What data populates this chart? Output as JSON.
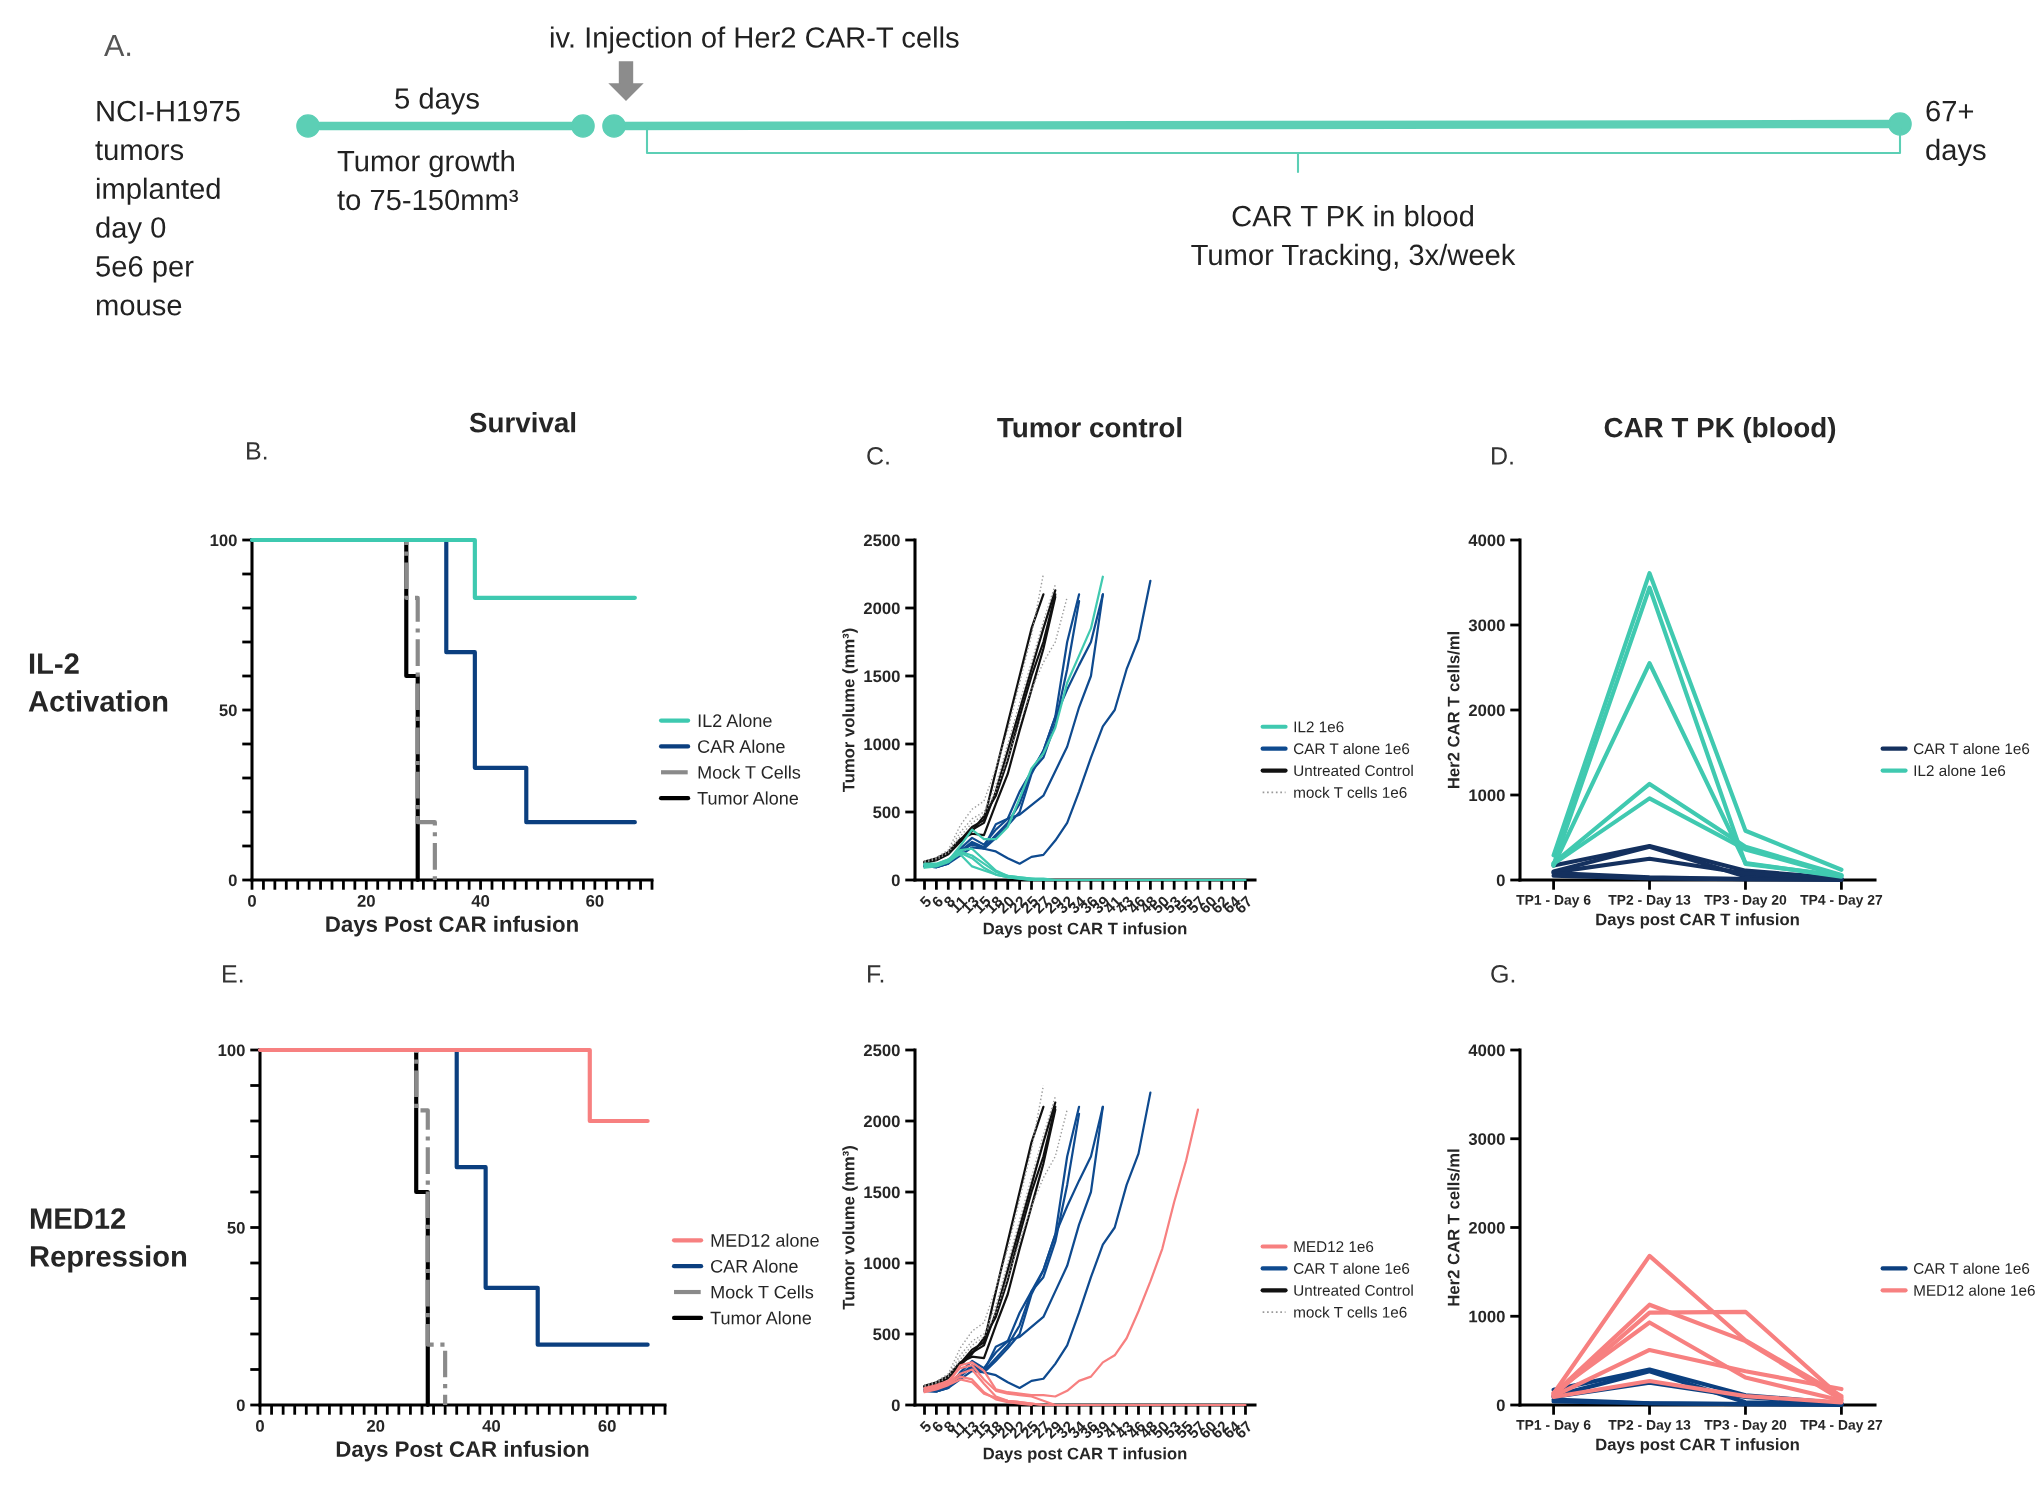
{
  "chart_data": [
    {
      "type": "other",
      "annotations": [
        "A.",
        "NCI-H1975\ntumors\nimplanted\nday 0\n5e6 per\nmouse",
        "5 days",
        "Tumor growth\nto 75-150mm³",
        "iv. Injection of Her2 CAR-T cells",
        "CAR T PK in blood\nTumor Tracking, 3x/week",
        "67+\ndays"
      ]
    },
    {
      "type": "step",
      "title": "Survival",
      "xlabel": "Days Post CAR infusion",
      "annotations": [
        "B.",
        "IL-2\nActivation"
      ],
      "xlim": [
        0,
        70
      ],
      "ylim": [
        0,
        100
      ],
      "xticks": [
        0,
        {
          "value": 2,
          "label": null
        },
        {
          "value": 4,
          "label": null
        },
        {
          "value": 6,
          "label": null
        },
        {
          "value": 8,
          "label": null
        },
        {
          "value": 10,
          "label": null
        },
        {
          "value": 12,
          "label": null
        },
        {
          "value": 14,
          "label": null
        },
        {
          "value": 16,
          "label": null
        },
        {
          "value": 18,
          "label": null
        },
        20,
        {
          "value": 22,
          "label": null
        },
        {
          "value": 24,
          "label": null
        },
        {
          "value": 26,
          "label": null
        },
        {
          "value": 28,
          "label": null
        },
        {
          "value": 30,
          "label": null
        },
        {
          "value": 32,
          "label": null
        },
        {
          "value": 34,
          "label": null
        },
        {
          "value": 36,
          "label": null
        },
        {
          "value": 38,
          "label": null
        },
        40,
        {
          "value": 42,
          "label": null
        },
        {
          "value": 44,
          "label": null
        },
        {
          "value": 46,
          "label": null
        },
        {
          "value": 48,
          "label": null
        },
        {
          "value": 50,
          "label": null
        },
        {
          "value": 52,
          "label": null
        },
        {
          "value": 54,
          "label": null
        },
        {
          "value": 56,
          "label": null
        },
        {
          "value": 58,
          "label": null
        },
        60,
        {
          "value": 62,
          "label": null
        },
        {
          "value": 64,
          "label": null
        },
        {
          "value": 66,
          "label": null
        },
        {
          "value": 68,
          "label": null
        },
        {
          "value": 70,
          "label": null
        }
      ],
      "yticks": [
        0,
        {
          "value": 10,
          "label": null
        },
        {
          "value": 20,
          "label": null
        },
        {
          "value": 30,
          "label": null
        },
        {
          "value": 40,
          "label": null
        },
        50,
        {
          "value": 60,
          "label": null
        },
        {
          "value": 70,
          "label": null
        },
        {
          "value": 80,
          "label": null
        },
        {
          "value": 90,
          "label": null
        },
        100
      ],
      "legend": "right",
      "series": [
        {
          "name": "IL2 Alone",
          "color": "#3ec9b0",
          "x": [
            0,
            39,
            67
          ],
          "values": [
            100,
            83,
            83
          ]
        },
        {
          "name": "CAR Alone",
          "color": "#0b3f7f",
          "x": [
            0,
            34,
            39,
            48,
            67
          ],
          "values": [
            100,
            67,
            33,
            17,
            17
          ]
        },
        {
          "name": "Mock T Cells",
          "color": "#8a8a8a",
          "line_style": "dashdot",
          "x": [
            0,
            27,
            29,
            32
          ],
          "values": [
            100,
            83,
            17,
            0
          ]
        },
        {
          "name": "Tumor Alone",
          "color": "#000000",
          "x": [
            0,
            27,
            29
          ],
          "values": [
            100,
            60,
            0
          ]
        }
      ]
    },
    {
      "type": "line",
      "title": "Tumor control",
      "xlabel": "Days post CAR T infusion",
      "ylabel": "Tumor volume (mm³)",
      "annotations": [
        "C."
      ],
      "ylim": [
        0,
        2500
      ],
      "yticks": [
        0,
        500,
        1000,
        1500,
        2000,
        2500
      ],
      "legend": "right",
      "categories": [
        "5",
        "6",
        "8",
        "11",
        "13",
        "15",
        "18",
        "20",
        "22",
        "25",
        "27",
        "29",
        "32",
        "34",
        "36",
        "39",
        "41",
        "43",
        "46",
        "48",
        "50",
        "53",
        "55",
        "57",
        "60",
        "62",
        "64",
        "67"
      ],
      "series": [
        {
          "color": "#111111",
          "values": [
            130,
            150,
            200,
            290,
            390,
            440,
            800,
            1150,
            1500,
            1850,
            2100,
            null,
            null,
            null,
            null,
            null,
            null,
            null,
            null,
            null,
            null,
            null,
            null,
            null,
            null,
            null,
            null,
            null
          ]
        },
        {
          "color": "#111111",
          "values": [
            130,
            150,
            195,
            290,
            370,
            420,
            650,
            950,
            1250,
            1550,
            1850,
            2130,
            null,
            null,
            null,
            null,
            null,
            null,
            null,
            null,
            null,
            null,
            null,
            null,
            null,
            null,
            null,
            null
          ]
        },
        {
          "color": "#111111",
          "values": [
            125,
            145,
            190,
            280,
            360,
            470,
            620,
            880,
            1200,
            1500,
            1750,
            2100,
            null,
            null,
            null,
            null,
            null,
            null,
            null,
            null,
            null,
            null,
            null,
            null,
            null,
            null,
            null,
            null
          ]
        },
        {
          "color": "#111111",
          "values": [
            135,
            160,
            205,
            300,
            340,
            330,
            560,
            780,
            1100,
            1400,
            1700,
            2080,
            null,
            null,
            null,
            null,
            null,
            null,
            null,
            null,
            null,
            null,
            null,
            null,
            null,
            null,
            null,
            null
          ]
        },
        {
          "color": "#999999",
          "line_style": "dotted",
          "values": [
            140,
            165,
            220,
            400,
            520,
            580,
            820,
            1100,
            1450,
            1800,
            2250,
            null,
            null,
            null,
            null,
            null,
            null,
            null,
            null,
            null,
            null,
            null,
            null,
            null,
            null,
            null,
            null,
            null
          ]
        },
        {
          "color": "#999999",
          "line_style": "dotted",
          "values": [
            140,
            160,
            210,
            350,
            450,
            500,
            700,
            1000,
            1300,
            1600,
            1900,
            2170,
            null,
            null,
            null,
            null,
            null,
            null,
            null,
            null,
            null,
            null,
            null,
            null,
            null,
            null,
            null,
            null
          ]
        },
        {
          "color": "#999999",
          "line_style": "dotted",
          "values": [
            130,
            150,
            200,
            320,
            420,
            480,
            650,
            900,
            1150,
            1400,
            1600,
            1750,
            2080,
            null,
            null,
            null,
            null,
            null,
            null,
            null,
            null,
            null,
            null,
            null,
            null,
            null,
            null,
            null
          ]
        },
        {
          "color": "#0e4a8f",
          "values": [
            100,
            95,
            120,
            230,
            310,
            260,
            370,
            450,
            650,
            800,
            950,
            1200,
            1750,
            2100,
            null,
            null,
            null,
            null,
            null,
            null,
            null,
            null,
            null,
            null,
            null,
            null,
            null,
            null
          ]
        },
        {
          "color": "#0e4a8f",
          "values": [
            110,
            100,
            130,
            210,
            280,
            240,
            330,
            420,
            560,
            800,
            900,
            1150,
            1550,
            2050,
            null,
            null,
            null,
            null,
            null,
            null,
            null,
            null,
            null,
            null,
            null,
            null,
            null,
            null
          ]
        },
        {
          "color": "#0e4a8f",
          "values": [
            100,
            95,
            125,
            200,
            270,
            230,
            310,
            400,
            500,
            780,
            950,
            1200,
            1400,
            1580,
            1750,
            2100,
            null,
            null,
            null,
            null,
            null,
            null,
            null,
            null,
            null,
            null,
            null,
            null
          ]
        },
        {
          "color": "#0e4a8f",
          "values": [
            110,
            100,
            130,
            220,
            260,
            240,
            410,
            450,
            480,
            550,
            620,
            800,
            980,
            1270,
            1500,
            2100,
            null,
            null,
            null,
            null,
            null,
            null,
            null,
            null,
            null,
            null,
            null,
            null
          ]
        },
        {
          "color": "#0e4a8f",
          "values": [
            100,
            95,
            120,
            180,
            240,
            230,
            210,
            160,
            120,
            170,
            185,
            290,
            420,
            650,
            900,
            1130,
            1250,
            1550,
            1770,
            2200,
            null,
            null,
            null,
            null,
            null,
            null,
            null,
            null
          ]
        },
        {
          "color": "#40c9b0",
          "values": [
            120,
            120,
            150,
            210,
            180,
            120,
            60,
            30,
            20,
            10,
            10,
            0,
            null,
            null,
            null,
            null,
            null,
            null,
            null,
            null,
            null,
            null,
            null,
            null,
            null,
            null,
            null,
            null
          ]
        },
        {
          "color": "#40c9b0",
          "values": [
            100,
            110,
            140,
            190,
            100,
            70,
            40,
            20,
            10,
            0,
            null,
            null,
            null,
            null,
            null,
            null,
            null,
            null,
            null,
            null,
            null,
            null,
            null,
            null,
            null,
            null,
            null,
            null
          ]
        },
        {
          "color": "#40c9b0",
          "values": [
            110,
            115,
            150,
            220,
            230,
            150,
            70,
            30,
            20,
            10,
            0,
            null,
            null,
            null,
            null,
            null,
            null,
            null,
            null,
            null,
            null,
            null,
            null,
            null,
            null,
            null,
            null,
            null
          ]
        },
        {
          "color": "#40c9b0",
          "values": [
            90,
            100,
            130,
            200,
            160,
            90,
            40,
            20,
            10,
            0,
            0,
            0,
            0,
            0,
            0,
            0,
            0,
            0,
            0,
            0,
            0,
            0,
            0,
            0,
            0,
            0,
            0,
            0
          ]
        },
        {
          "name": "IL2 1e6",
          "color": "#40c9b0",
          "values": [
            110,
            105,
            140,
            250,
            370,
            300,
            300,
            390,
            600,
            820,
            930,
            1120,
            1450,
            1650,
            1850,
            2230,
            null,
            null,
            null,
            null,
            null,
            null,
            null,
            null,
            null,
            null,
            null,
            null
          ]
        },
        {
          "name": "CAR T alone 1e6",
          "color": "#0e4a8f",
          "values": [
            null,
            null,
            null,
            null,
            null,
            null,
            null,
            null,
            null,
            null,
            null,
            null,
            null,
            null,
            null,
            null,
            null,
            null,
            null,
            null,
            null,
            null,
            null,
            null,
            null,
            null,
            null,
            null
          ]
        },
        {
          "name": "Untreated Control",
          "color": "#111111",
          "values": [
            null,
            null,
            null,
            null,
            null,
            null,
            null,
            null,
            null,
            null,
            null,
            null,
            null,
            null,
            null,
            null,
            null,
            null,
            null,
            null,
            null,
            null,
            null,
            null,
            null,
            null,
            null,
            null
          ]
        },
        {
          "name": "mock T cells 1e6",
          "color": "#999999",
          "line_style": "dotted",
          "values": [
            null,
            null,
            null,
            null,
            null,
            null,
            null,
            null,
            null,
            null,
            null,
            null,
            null,
            null,
            null,
            null,
            null,
            null,
            null,
            null,
            null,
            null,
            null,
            null,
            null,
            null,
            null,
            null
          ]
        }
      ]
    },
    {
      "type": "line",
      "title": "CAR T PK (blood)",
      "xlabel": "Days post CAR T infusion",
      "ylabel": "Her2 CAR T cells/ml",
      "annotations": [
        "D."
      ],
      "ylim": [
        0,
        4000
      ],
      "yticks": [
        0,
        1000,
        2000,
        3000,
        4000
      ],
      "legend": "right",
      "categories": [
        "TP1 - Day 6",
        "TP2 - Day 13",
        "TP3 - Day 20",
        "TP4 - Day 27"
      ],
      "series": [
        {
          "name": "CAR T alone 1e6",
          "color": "#14305e",
          "values": [
            170,
            400,
            110,
            20
          ]
        },
        {
          "color": "#14305e",
          "values": [
            100,
            390,
            40,
            10
          ]
        },
        {
          "color": "#14305e",
          "values": [
            90,
            250,
            80,
            10
          ]
        },
        {
          "color": "#14305e",
          "values": [
            80,
            30,
            10,
            10
          ]
        },
        {
          "color": "#14305e",
          "values": [
            50,
            20,
            10,
            0
          ]
        },
        {
          "name": "IL2 alone 1e6",
          "color": "#40c9b0",
          "values": [
            290,
            3610,
            580,
            120
          ]
        },
        {
          "color": "#40c9b0",
          "values": [
            180,
            3440,
            190,
            50
          ]
        },
        {
          "color": "#40c9b0",
          "values": [
            170,
            2550,
            200,
            40
          ]
        },
        {
          "color": "#40c9b0",
          "values": [
            200,
            1130,
            390,
            60
          ]
        },
        {
          "color": "#40c9b0",
          "values": [
            190,
            960,
            360,
            50
          ]
        }
      ]
    },
    {
      "type": "step",
      "xlabel": "Days Post CAR infusion",
      "annotations": [
        "E.",
        "MED12\nRepression"
      ],
      "xlim": [
        0,
        70
      ],
      "ylim": [
        0,
        100
      ],
      "xticks": [
        0,
        {
          "value": 2,
          "label": null
        },
        {
          "value": 4,
          "label": null
        },
        {
          "value": 6,
          "label": null
        },
        {
          "value": 8,
          "label": null
        },
        {
          "value": 10,
          "label": null
        },
        {
          "value": 12,
          "label": null
        },
        {
          "value": 14,
          "label": null
        },
        {
          "value": 16,
          "label": null
        },
        {
          "value": 18,
          "label": null
        },
        20,
        {
          "value": 22,
          "label": null
        },
        {
          "value": 24,
          "label": null
        },
        {
          "value": 26,
          "label": null
        },
        {
          "value": 28,
          "label": null
        },
        {
          "value": 30,
          "label": null
        },
        {
          "value": 32,
          "label": null
        },
        {
          "value": 34,
          "label": null
        },
        {
          "value": 36,
          "label": null
        },
        {
          "value": 38,
          "label": null
        },
        40,
        {
          "value": 42,
          "label": null
        },
        {
          "value": 44,
          "label": null
        },
        {
          "value": 46,
          "label": null
        },
        {
          "value": 48,
          "label": null
        },
        {
          "value": 50,
          "label": null
        },
        {
          "value": 52,
          "label": null
        },
        {
          "value": 54,
          "label": null
        },
        {
          "value": 56,
          "label": null
        },
        {
          "value": 58,
          "label": null
        },
        60,
        {
          "value": 62,
          "label": null
        },
        {
          "value": 64,
          "label": null
        },
        {
          "value": 66,
          "label": null
        },
        {
          "value": 68,
          "label": null
        },
        {
          "value": 70,
          "label": null
        }
      ],
      "yticks": [
        0,
        {
          "value": 10,
          "label": null
        },
        {
          "value": 20,
          "label": null
        },
        {
          "value": 30,
          "label": null
        },
        {
          "value": 40,
          "label": null
        },
        50,
        {
          "value": 60,
          "label": null
        },
        {
          "value": 70,
          "label": null
        },
        {
          "value": 80,
          "label": null
        },
        {
          "value": 90,
          "label": null
        },
        100
      ],
      "legend": "right",
      "series": [
        {
          "name": "MED12 alone",
          "color": "#f78080",
          "x": [
            0,
            39,
            57,
            67
          ],
          "values": [
            100,
            100,
            80,
            80
          ]
        },
        {
          "name": "CAR Alone",
          "color": "#0b3f7f",
          "x": [
            0,
            34,
            39,
            48,
            67
          ],
          "values": [
            100,
            67,
            33,
            17,
            17
          ]
        },
        {
          "name": "Mock T Cells",
          "color": "#8a8a8a",
          "line_style": "dashdot",
          "x": [
            0,
            27,
            29,
            32
          ],
          "values": [
            100,
            83,
            17,
            0
          ]
        },
        {
          "name": "Tumor Alone",
          "color": "#000000",
          "x": [
            0,
            27,
            29
          ],
          "values": [
            100,
            60,
            0
          ]
        }
      ]
    },
    {
      "type": "line",
      "xlabel": "Days post CAR T infusion",
      "ylabel": "Tumor volume (mm³)",
      "annotations": [
        "F."
      ],
      "ylim": [
        0,
        2500
      ],
      "yticks": [
        0,
        500,
        1000,
        1500,
        2000,
        2500
      ],
      "legend": "right",
      "categories": [
        "5",
        "6",
        "8",
        "11",
        "13",
        "15",
        "18",
        "20",
        "22",
        "25",
        "27",
        "29",
        "32",
        "34",
        "36",
        "39",
        "41",
        "43",
        "46",
        "48",
        "50",
        "53",
        "55",
        "57",
        "60",
        "62",
        "64",
        "67"
      ],
      "series": [
        {
          "color": "#111111",
          "values": [
            130,
            150,
            200,
            290,
            390,
            440,
            800,
            1150,
            1500,
            1850,
            2100,
            null,
            null,
            null,
            null,
            null,
            null,
            null,
            null,
            null,
            null,
            null,
            null,
            null,
            null,
            null,
            null,
            null
          ]
        },
        {
          "color": "#111111",
          "values": [
            130,
            150,
            195,
            290,
            370,
            420,
            650,
            950,
            1250,
            1550,
            1850,
            2130,
            null,
            null,
            null,
            null,
            null,
            null,
            null,
            null,
            null,
            null,
            null,
            null,
            null,
            null,
            null,
            null
          ]
        },
        {
          "color": "#111111",
          "values": [
            125,
            145,
            190,
            280,
            360,
            470,
            620,
            880,
            1200,
            1500,
            1750,
            2100,
            null,
            null,
            null,
            null,
            null,
            null,
            null,
            null,
            null,
            null,
            null,
            null,
            null,
            null,
            null,
            null
          ]
        },
        {
          "color": "#111111",
          "values": [
            135,
            160,
            205,
            300,
            340,
            330,
            560,
            780,
            1100,
            1400,
            1700,
            2080,
            null,
            null,
            null,
            null,
            null,
            null,
            null,
            null,
            null,
            null,
            null,
            null,
            null,
            null,
            null,
            null
          ]
        },
        {
          "color": "#999999",
          "line_style": "dotted",
          "values": [
            140,
            165,
            220,
            400,
            520,
            580,
            820,
            1100,
            1450,
            1800,
            2250,
            null,
            null,
            null,
            null,
            null,
            null,
            null,
            null,
            null,
            null,
            null,
            null,
            null,
            null,
            null,
            null,
            null
          ]
        },
        {
          "color": "#999999",
          "line_style": "dotted",
          "values": [
            140,
            160,
            210,
            350,
            450,
            500,
            700,
            1000,
            1300,
            1600,
            1900,
            2170,
            null,
            null,
            null,
            null,
            null,
            null,
            null,
            null,
            null,
            null,
            null,
            null,
            null,
            null,
            null,
            null
          ]
        },
        {
          "color": "#999999",
          "line_style": "dotted",
          "values": [
            130,
            150,
            200,
            320,
            420,
            480,
            650,
            900,
            1150,
            1400,
            1600,
            1750,
            2080,
            null,
            null,
            null,
            null,
            null,
            null,
            null,
            null,
            null,
            null,
            null,
            null,
            null,
            null,
            null
          ]
        },
        {
          "color": "#0e4a8f",
          "values": [
            100,
            95,
            120,
            230,
            310,
            260,
            370,
            450,
            650,
            800,
            950,
            1200,
            1750,
            2100,
            null,
            null,
            null,
            null,
            null,
            null,
            null,
            null,
            null,
            null,
            null,
            null,
            null,
            null
          ]
        },
        {
          "color": "#0e4a8f",
          "values": [
            110,
            100,
            130,
            210,
            280,
            240,
            330,
            420,
            560,
            800,
            900,
            1150,
            1550,
            2050,
            null,
            null,
            null,
            null,
            null,
            null,
            null,
            null,
            null,
            null,
            null,
            null,
            null,
            null
          ]
        },
        {
          "color": "#0e4a8f",
          "values": [
            100,
            95,
            125,
            200,
            270,
            230,
            310,
            400,
            500,
            780,
            950,
            1200,
            1400,
            1580,
            1750,
            2100,
            null,
            null,
            null,
            null,
            null,
            null,
            null,
            null,
            null,
            null,
            null,
            null
          ]
        },
        {
          "color": "#0e4a8f",
          "values": [
            110,
            100,
            130,
            220,
            260,
            240,
            410,
            450,
            480,
            550,
            620,
            800,
            980,
            1270,
            1500,
            2100,
            null,
            null,
            null,
            null,
            null,
            null,
            null,
            null,
            null,
            null,
            null,
            null
          ]
        },
        {
          "color": "#0e4a8f",
          "values": [
            100,
            95,
            120,
            180,
            240,
            230,
            210,
            160,
            120,
            170,
            185,
            290,
            420,
            650,
            900,
            1130,
            1250,
            1550,
            1770,
            2200,
            null,
            null,
            null,
            null,
            null,
            null,
            null,
            null
          ]
        },
        {
          "color": "#f78080",
          "values": [
            110,
            130,
            160,
            220,
            250,
            150,
            60,
            30,
            20,
            10,
            0,
            null,
            null,
            null,
            null,
            null,
            null,
            null,
            null,
            null,
            null,
            null,
            null,
            null,
            null,
            null,
            null,
            null
          ]
        },
        {
          "color": "#f78080",
          "values": [
            100,
            120,
            150,
            200,
            180,
            90,
            40,
            20,
            10,
            0,
            null,
            null,
            null,
            null,
            null,
            null,
            null,
            null,
            null,
            null,
            null,
            null,
            null,
            null,
            null,
            null,
            null,
            null
          ]
        },
        {
          "color": "#f78080",
          "values": [
            120,
            140,
            170,
            260,
            280,
            180,
            100,
            80,
            70,
            60,
            30,
            0,
            null,
            null,
            null,
            null,
            null,
            null,
            null,
            null,
            null,
            null,
            null,
            null,
            null,
            null,
            null,
            null
          ]
        },
        {
          "color": "#f78080",
          "values": [
            90,
            110,
            140,
            180,
            160,
            80,
            50,
            30,
            20,
            10,
            0,
            0,
            0,
            0,
            0,
            0,
            0,
            0,
            0,
            0,
            0,
            0,
            0,
            0,
            0,
            0,
            0,
            0
          ]
        },
        {
          "name": "MED12 1e6",
          "color": "#f78080",
          "values": [
            100,
            120,
            150,
            280,
            300,
            240,
            110,
            90,
            80,
            70,
            70,
            60,
            100,
            170,
            200,
            300,
            350,
            470,
            660,
            870,
            1100,
            1430,
            1720,
            2080,
            null,
            null,
            null,
            null
          ]
        },
        {
          "name": "CAR T alone 1e6",
          "color": "#0e4a8f",
          "values": [
            null,
            null,
            null,
            null,
            null,
            null,
            null,
            null,
            null,
            null,
            null,
            null,
            null,
            null,
            null,
            null,
            null,
            null,
            null,
            null,
            null,
            null,
            null,
            null,
            null,
            null,
            null,
            null
          ]
        },
        {
          "name": "Untreated Control",
          "color": "#111111",
          "values": [
            null,
            null,
            null,
            null,
            null,
            null,
            null,
            null,
            null,
            null,
            null,
            null,
            null,
            null,
            null,
            null,
            null,
            null,
            null,
            null,
            null,
            null,
            null,
            null,
            null,
            null,
            null,
            null
          ]
        },
        {
          "name": "mock T cells 1e6",
          "color": "#999999",
          "line_style": "dotted",
          "values": [
            null,
            null,
            null,
            null,
            null,
            null,
            null,
            null,
            null,
            null,
            null,
            null,
            null,
            null,
            null,
            null,
            null,
            null,
            null,
            null,
            null,
            null,
            null,
            null,
            null,
            null,
            null,
            null
          ]
        }
      ]
    },
    {
      "type": "line",
      "xlabel": "Days post CAR T infusion",
      "ylabel": "Her2 CAR T cells/ml",
      "annotations": [
        "G."
      ],
      "ylim": [
        0,
        4000
      ],
      "yticks": [
        0,
        1000,
        2000,
        3000,
        4000
      ],
      "legend": "right",
      "categories": [
        "TP1 - Day 6",
        "TP2 - Day 13",
        "TP3 - Day 20",
        "TP4 - Day 27"
      ],
      "series": [
        {
          "name": "CAR T alone 1e6",
          "color": "#0b3f7f",
          "values": [
            170,
            400,
            110,
            20
          ]
        },
        {
          "color": "#0b3f7f",
          "values": [
            100,
            380,
            30,
            10
          ]
        },
        {
          "color": "#0b3f7f",
          "values": [
            90,
            250,
            90,
            10
          ]
        },
        {
          "color": "#0b3f7f",
          "values": [
            60,
            20,
            10,
            10
          ]
        },
        {
          "color": "#0b3f7f",
          "values": [
            40,
            20,
            10,
            0
          ]
        },
        {
          "name": "MED12 alone 1e6",
          "color": "#f78080",
          "values": [
            130,
            1680,
            730,
            100
          ]
        },
        {
          "color": "#f78080",
          "values": [
            120,
            1130,
            720,
            60
          ]
        },
        {
          "color": "#f78080",
          "values": [
            110,
            1040,
            1050,
            80
          ]
        },
        {
          "color": "#f78080",
          "values": [
            140,
            930,
            310,
            50
          ]
        },
        {
          "color": "#f78080",
          "values": [
            100,
            620,
            380,
            180
          ]
        },
        {
          "color": "#f78080",
          "values": [
            90,
            270,
            100,
            30
          ]
        }
      ]
    }
  ]
}
